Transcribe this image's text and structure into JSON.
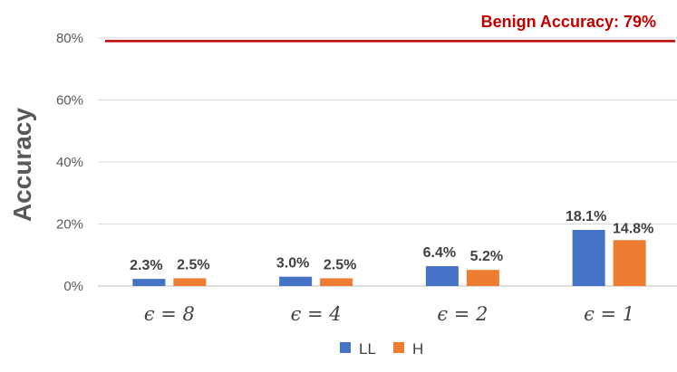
{
  "chart_data": {
    "type": "bar",
    "ylabel": "Accuracy",
    "ylim": [
      0,
      80
    ],
    "yticks": [
      "0%",
      "20%",
      "40%",
      "60%",
      "80%"
    ],
    "ytick_values": [
      0,
      20,
      40,
      60,
      80
    ],
    "grid": true,
    "categories": [
      "ϵ = 8",
      "ϵ = 4",
      "ϵ = 2",
      "ϵ = 1"
    ],
    "series": [
      {
        "name": "LL",
        "color": "#4472C4",
        "values": [
          2.3,
          3.0,
          6.4,
          18.1
        ],
        "labels": [
          "2.3%",
          "3.0%",
          "6.4%",
          "18.1%"
        ]
      },
      {
        "name": "H",
        "color": "#ED7D31",
        "values": [
          2.5,
          2.5,
          5.2,
          14.8
        ],
        "labels": [
          "2.5%",
          "2.5%",
          "5.2%",
          "14.8%"
        ]
      }
    ],
    "reference_line": {
      "value": 79,
      "label": "Benign Accuracy: 79%",
      "color": "#C00000"
    },
    "legend_position": "bottom"
  }
}
